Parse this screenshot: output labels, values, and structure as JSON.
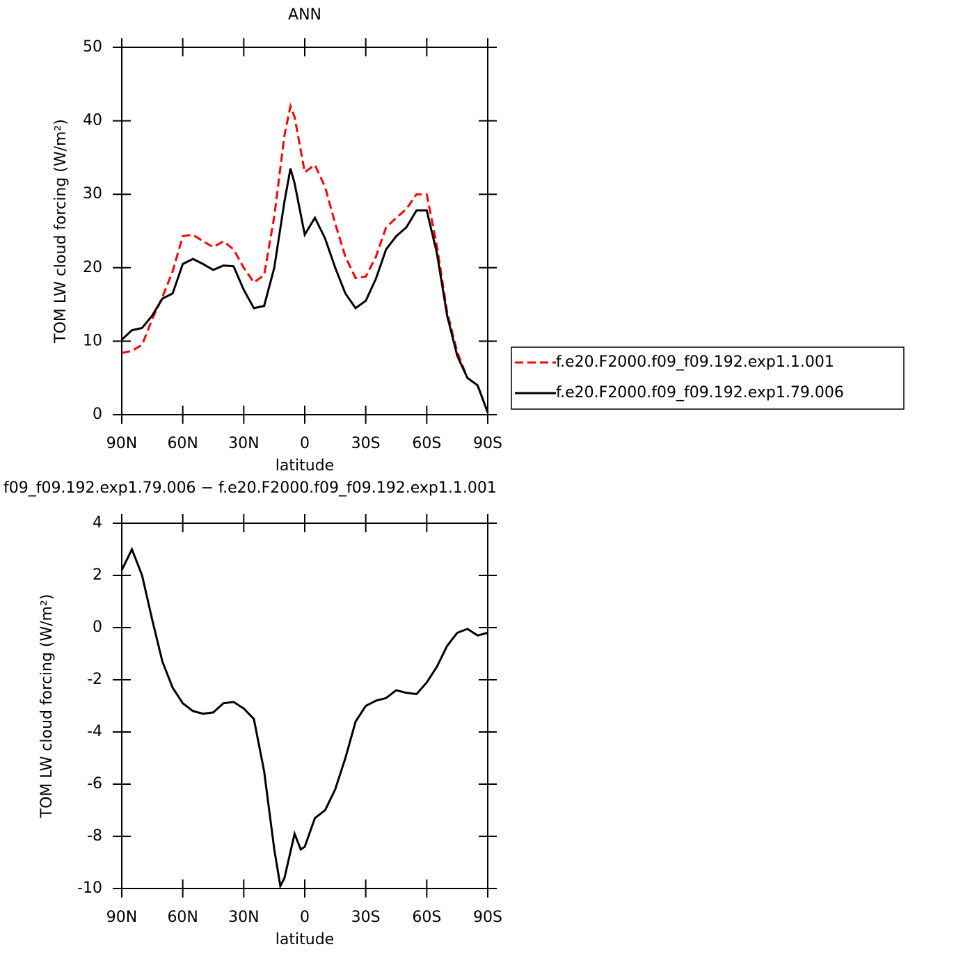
{
  "chart_data": [
    {
      "type": "line",
      "title": "ANN",
      "x_label": "latitude",
      "y_label": "TOM LW cloud forcing (W/m²)",
      "x": [
        90,
        85,
        80,
        75,
        70,
        65,
        60,
        55,
        50,
        45,
        40,
        35,
        30,
        25,
        20,
        15,
        10,
        7,
        5,
        0,
        -5,
        -10,
        -15,
        -20,
        -25,
        -30,
        -35,
        -40,
        -45,
        -50,
        -55,
        -60,
        -65,
        -70,
        -75,
        -80,
        -85,
        -90
      ],
      "xlim": [
        90,
        -90
      ],
      "xticks": [
        {
          "value": 90,
          "label": "90N"
        },
        {
          "value": 60,
          "label": "60N"
        },
        {
          "value": 30,
          "label": "30N"
        },
        0,
        {
          "value": -30,
          "label": "30S"
        },
        {
          "value": -60,
          "label": "60S"
        },
        {
          "value": -90,
          "label": "90S"
        }
      ],
      "ylim": [
        0,
        50
      ],
      "yticks": [
        0,
        10,
        20,
        30,
        40,
        50
      ],
      "legend": "right",
      "series": [
        {
          "name": "f.e20.F2000.f09_f09.192.exp1.1.001",
          "color": "#ff0000",
          "line_style": "dashed",
          "values": [
            8.4,
            8.7,
            9.5,
            13,
            16,
            19.5,
            24.3,
            24.5,
            23.6,
            22.8,
            23.6,
            22.5,
            20,
            18,
            19,
            27,
            38,
            42,
            40.5,
            33,
            34,
            31,
            26,
            21.5,
            18.6,
            18.8,
            21.5,
            25.5,
            26.8,
            28,
            30,
            30,
            23,
            14,
            8.5,
            5,
            4,
            0.3
          ]
        },
        {
          "name": "f.e20.F2000.f09_f09.192.exp1.79.006",
          "color": "#000000",
          "line_style": "solid",
          "values": [
            10.2,
            11.5,
            11.8,
            13.5,
            15.8,
            16.5,
            20.5,
            21.2,
            20.5,
            19.7,
            20.3,
            20.2,
            17,
            14.5,
            14.8,
            20,
            29,
            33.5,
            31.5,
            24.5,
            26.8,
            24,
            20,
            16.5,
            14.5,
            15.5,
            18.5,
            22.5,
            24.3,
            25.5,
            27.8,
            27.8,
            22,
            13.5,
            8,
            5,
            4,
            0.3
          ]
        }
      ]
    },
    {
      "type": "line",
      "title": "f09_f09.192.exp1.79.006 − f.e20.F2000.f09_f09.192.exp1.1.001",
      "x_label": "latitude",
      "y_label": "TOM LW cloud forcing (W/m²)",
      "x": [
        90,
        85,
        80,
        75,
        70,
        65,
        60,
        55,
        50,
        45,
        40,
        35,
        30,
        25,
        20,
        15,
        12,
        10,
        5,
        2,
        0,
        -5,
        -10,
        -15,
        -20,
        -25,
        -30,
        -35,
        -40,
        -45,
        -50,
        -55,
        -60,
        -65,
        -70,
        -75,
        -80,
        -85,
        -90
      ],
      "xlim": [
        90,
        -90
      ],
      "xticks": [
        {
          "value": 90,
          "label": "90N"
        },
        {
          "value": 60,
          "label": "60N"
        },
        {
          "value": 30,
          "label": "30N"
        },
        0,
        {
          "value": -30,
          "label": "30S"
        },
        {
          "value": -60,
          "label": "60S"
        },
        {
          "value": -90,
          "label": "90S"
        }
      ],
      "ylim": [
        -10,
        4
      ],
      "yticks": [
        -10,
        -8,
        -6,
        -4,
        -2,
        0,
        2,
        4
      ],
      "color": "#000000",
      "values": [
        2.2,
        3.0,
        2.0,
        0.3,
        -1.3,
        -2.3,
        -2.9,
        -3.2,
        -3.3,
        -3.25,
        -2.9,
        -2.85,
        -3.1,
        -3.5,
        -5.5,
        -8.5,
        -9.9,
        -9.6,
        -7.9,
        -8.5,
        -8.4,
        -7.3,
        -7.0,
        -6.2,
        -5.0,
        -3.6,
        -3.0,
        -2.8,
        -2.7,
        -2.4,
        -2.5,
        -2.55,
        -2.1,
        -1.5,
        -0.7,
        -0.2,
        -0.05,
        -0.3,
        -0.2
      ]
    }
  ]
}
